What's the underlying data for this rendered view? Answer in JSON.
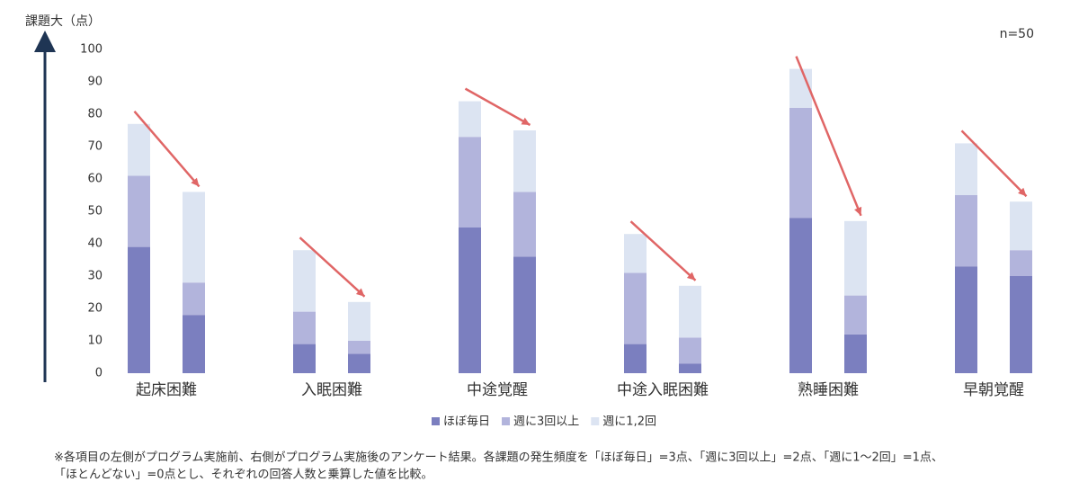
{
  "chart_data": {
    "type": "stacked-bar",
    "y_label": "課題大（点）",
    "annotation": "n=50",
    "categories": [
      "起床困難",
      "入眠困難",
      "中途覚醒",
      "中途入眠困難",
      "熟睡困難",
      "早朝覚醒"
    ],
    "series": [
      {
        "name": "ほぼ毎日",
        "color": "#7b7fbf",
        "values": [
          [
            39,
            18
          ],
          [
            9,
            6
          ],
          [
            45,
            36
          ],
          [
            9,
            3
          ],
          [
            48,
            12
          ],
          [
            33,
            30
          ]
        ]
      },
      {
        "name": "週に3回以上",
        "color": "#b2b4dc",
        "values": [
          [
            22,
            10
          ],
          [
            10,
            4
          ],
          [
            28,
            20
          ],
          [
            22,
            8
          ],
          [
            34,
            12
          ],
          [
            22,
            8
          ]
        ]
      },
      {
        "name": "週に1,2回",
        "color": "#dce4f2",
        "values": [
          [
            16,
            28
          ],
          [
            19,
            12
          ],
          [
            11,
            19
          ],
          [
            12,
            16
          ],
          [
            12,
            23
          ],
          [
            16,
            15
          ]
        ]
      }
    ],
    "ylim": [
      0,
      100
    ],
    "yticks": [
      0,
      10,
      20,
      30,
      40,
      50,
      60,
      70,
      80,
      90,
      100
    ],
    "arrow_color": "#e06666",
    "notes": [
      "※各項目の左側がプログラム実施前、右側がプログラム実施後のアンケート結果。各課題の発生頻度を「ほぼ毎日」=3点、「週に3回以上」=2点、「週に1〜2回」=1点、",
      "「ほとんどない」=0点とし、それぞれの回答人数と乗算した値を比較。"
    ]
  }
}
